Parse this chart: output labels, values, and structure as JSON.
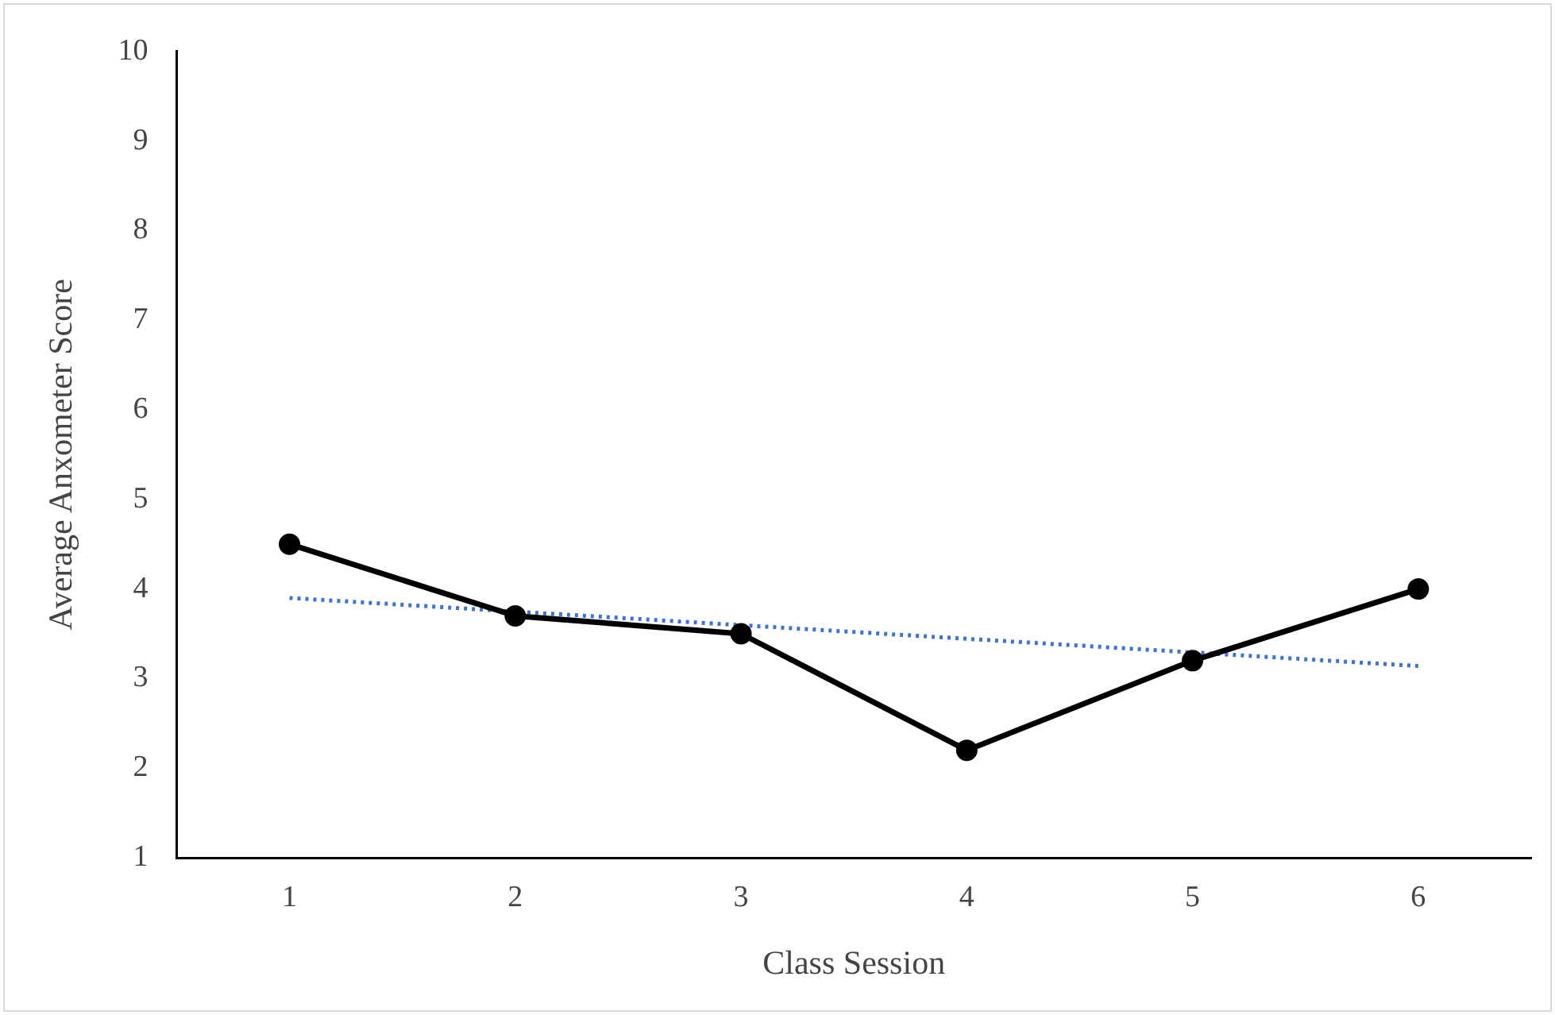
{
  "chart_data": {
    "type": "line",
    "xlabel": "Class Session",
    "ylabel": "Average Anxometer Score",
    "xlim": [
      0.5,
      6.5
    ],
    "xticks": [
      1,
      2,
      3,
      4,
      5,
      6
    ],
    "ylim": [
      1,
      10
    ],
    "yticks": [
      1,
      2,
      3,
      4,
      5,
      6,
      7,
      8,
      9,
      10
    ],
    "grid": false,
    "legend": false,
    "series": [
      {
        "type": "line",
        "color": "#000000",
        "x": [
          1,
          2,
          3,
          4,
          5,
          6
        ],
        "values": [
          4.5,
          3.7,
          3.5,
          2.2,
          3.2,
          4.0
        ],
        "marker": "circle",
        "line_style": "solid"
      },
      {
        "type": "line",
        "color": "#4472c4",
        "x": [
          1,
          6
        ],
        "values": [
          3.9,
          3.14
        ],
        "marker": "none",
        "line_style": "dotted"
      }
    ]
  }
}
